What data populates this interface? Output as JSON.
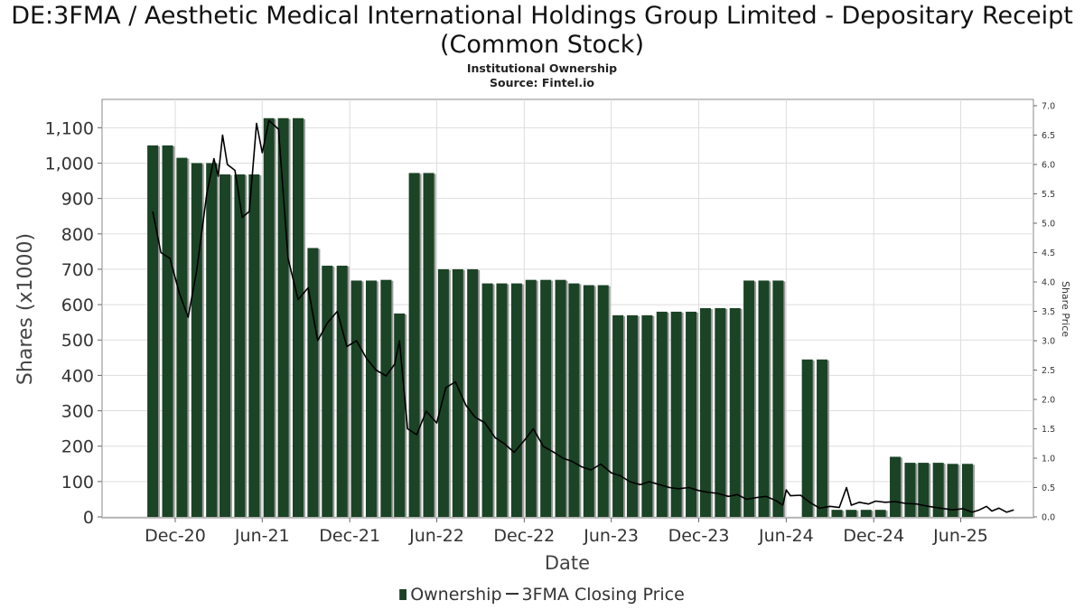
{
  "header": {
    "title": "DE:3FMA / Aesthetic Medical International Holdings Group Limited - Depositary Receipt (Common Stock)",
    "subtitle": "Institutional Ownership",
    "source": "Source: Fintel.io"
  },
  "legend": {
    "ownership_label": "Ownership",
    "price_label": "3FMA Closing Price"
  },
  "colors": {
    "bar_fill": "#1b4325",
    "bar_shadow": "#9a9a9a",
    "price_line": "#000000",
    "grid": "#dddddd"
  },
  "chart_data": {
    "type": "bar",
    "xlabel": "Date",
    "ylabel": "Shares (x1000)",
    "y2label": "Share Price",
    "ylim": [
      0,
      1180
    ],
    "y2lim": [
      0,
      7.0
    ],
    "yticks": [
      0,
      100,
      200,
      300,
      400,
      500,
      600,
      700,
      800,
      900,
      1000,
      1100
    ],
    "y2ticks": [
      0.0,
      0.5,
      1.0,
      1.5,
      2.0,
      2.5,
      3.0,
      3.5,
      4.0,
      4.5,
      5.0,
      5.5,
      6.0,
      6.5,
      7.0
    ],
    "xlim": [
      "2020-07-01",
      "2025-10-31"
    ],
    "xticks": [
      {
        "label": "Dec-20",
        "date": "2020-12-01"
      },
      {
        "label": "Jun-21",
        "date": "2021-06-01"
      },
      {
        "label": "Dec-21",
        "date": "2021-12-01"
      },
      {
        "label": "Jun-22",
        "date": "2022-06-01"
      },
      {
        "label": "Dec-22",
        "date": "2022-12-01"
      },
      {
        "label": "Jun-23",
        "date": "2023-06-01"
      },
      {
        "label": "Dec-23",
        "date": "2023-12-01"
      },
      {
        "label": "Jun-24",
        "date": "2024-06-01"
      },
      {
        "label": "Dec-24",
        "date": "2024-12-01"
      },
      {
        "label": "Jun-25",
        "date": "2025-06-01"
      }
    ],
    "grid": true,
    "legend_position": "bottom",
    "series": [
      {
        "name": "Ownership",
        "type": "bar",
        "points": [
          {
            "date": "2020-10-15",
            "value": 1050
          },
          {
            "date": "2020-11-15",
            "value": 1050
          },
          {
            "date": "2020-12-15",
            "value": 1015
          },
          {
            "date": "2021-01-15",
            "value": 1000
          },
          {
            "date": "2021-02-15",
            "value": 1000
          },
          {
            "date": "2021-03-15",
            "value": 968
          },
          {
            "date": "2021-04-15",
            "value": 968
          },
          {
            "date": "2021-05-15",
            "value": 968
          },
          {
            "date": "2021-06-15",
            "value": 1127
          },
          {
            "date": "2021-07-15",
            "value": 1127
          },
          {
            "date": "2021-08-15",
            "value": 1127
          },
          {
            "date": "2021-09-15",
            "value": 760
          },
          {
            "date": "2021-10-15",
            "value": 710
          },
          {
            "date": "2021-11-15",
            "value": 710
          },
          {
            "date": "2021-12-15",
            "value": 668
          },
          {
            "date": "2022-01-15",
            "value": 668
          },
          {
            "date": "2022-02-15",
            "value": 670
          },
          {
            "date": "2022-03-15",
            "value": 575
          },
          {
            "date": "2022-04-15",
            "value": 972
          },
          {
            "date": "2022-05-15",
            "value": 972
          },
          {
            "date": "2022-06-15",
            "value": 700
          },
          {
            "date": "2022-07-15",
            "value": 700
          },
          {
            "date": "2022-08-15",
            "value": 700
          },
          {
            "date": "2022-09-15",
            "value": 660
          },
          {
            "date": "2022-10-15",
            "value": 660
          },
          {
            "date": "2022-11-15",
            "value": 660
          },
          {
            "date": "2022-12-15",
            "value": 670
          },
          {
            "date": "2023-01-15",
            "value": 670
          },
          {
            "date": "2023-02-15",
            "value": 670
          },
          {
            "date": "2023-03-15",
            "value": 660
          },
          {
            "date": "2023-04-15",
            "value": 655
          },
          {
            "date": "2023-05-15",
            "value": 655
          },
          {
            "date": "2023-06-15",
            "value": 570
          },
          {
            "date": "2023-07-15",
            "value": 570
          },
          {
            "date": "2023-08-15",
            "value": 570
          },
          {
            "date": "2023-09-15",
            "value": 580
          },
          {
            "date": "2023-10-15",
            "value": 580
          },
          {
            "date": "2023-11-15",
            "value": 580
          },
          {
            "date": "2023-12-15",
            "value": 590
          },
          {
            "date": "2024-01-15",
            "value": 590
          },
          {
            "date": "2024-02-15",
            "value": 590
          },
          {
            "date": "2024-03-15",
            "value": 668
          },
          {
            "date": "2024-04-15",
            "value": 668
          },
          {
            "date": "2024-05-15",
            "value": 668
          },
          {
            "date": "2024-07-15",
            "value": 445
          },
          {
            "date": "2024-08-15",
            "value": 445
          },
          {
            "date": "2024-09-15",
            "value": 20
          },
          {
            "date": "2024-10-15",
            "value": 20
          },
          {
            "date": "2024-11-15",
            "value": 20
          },
          {
            "date": "2024-12-15",
            "value": 20
          },
          {
            "date": "2025-01-15",
            "value": 170
          },
          {
            "date": "2025-02-15",
            "value": 153
          },
          {
            "date": "2025-03-15",
            "value": 153
          },
          {
            "date": "2025-04-15",
            "value": 153
          },
          {
            "date": "2025-05-15",
            "value": 150
          },
          {
            "date": "2025-06-15",
            "value": 150
          }
        ]
      },
      {
        "name": "3FMA Closing Price",
        "type": "line",
        "axis": "right",
        "points": [
          {
            "date": "2020-10-15",
            "value": 5.2
          },
          {
            "date": "2020-11-01",
            "value": 4.5
          },
          {
            "date": "2020-11-20",
            "value": 4.4
          },
          {
            "date": "2020-12-10",
            "value": 3.8
          },
          {
            "date": "2020-12-28",
            "value": 3.4
          },
          {
            "date": "2021-01-15",
            "value": 4.2
          },
          {
            "date": "2021-02-05",
            "value": 5.5
          },
          {
            "date": "2021-02-20",
            "value": 6.1
          },
          {
            "date": "2021-03-01",
            "value": 5.8
          },
          {
            "date": "2021-03-10",
            "value": 6.5
          },
          {
            "date": "2021-03-20",
            "value": 6.0
          },
          {
            "date": "2021-04-05",
            "value": 5.9
          },
          {
            "date": "2021-04-20",
            "value": 5.1
          },
          {
            "date": "2021-05-05",
            "value": 5.2
          },
          {
            "date": "2021-05-20",
            "value": 6.7
          },
          {
            "date": "2021-06-01",
            "value": 6.2
          },
          {
            "date": "2021-06-15",
            "value": 6.75
          },
          {
            "date": "2021-07-05",
            "value": 6.6
          },
          {
            "date": "2021-07-25",
            "value": 4.4
          },
          {
            "date": "2021-08-15",
            "value": 3.7
          },
          {
            "date": "2021-09-05",
            "value": 3.9
          },
          {
            "date": "2021-09-25",
            "value": 3.0
          },
          {
            "date": "2021-10-15",
            "value": 3.3
          },
          {
            "date": "2021-11-05",
            "value": 3.5
          },
          {
            "date": "2021-11-25",
            "value": 2.9
          },
          {
            "date": "2021-12-15",
            "value": 3.0
          },
          {
            "date": "2022-01-05",
            "value": 2.7
          },
          {
            "date": "2022-01-25",
            "value": 2.5
          },
          {
            "date": "2022-02-15",
            "value": 2.4
          },
          {
            "date": "2022-03-05",
            "value": 2.6
          },
          {
            "date": "2022-03-15",
            "value": 3.0
          },
          {
            "date": "2022-04-01",
            "value": 1.5
          },
          {
            "date": "2022-04-20",
            "value": 1.4
          },
          {
            "date": "2022-05-10",
            "value": 1.8
          },
          {
            "date": "2022-06-01",
            "value": 1.6
          },
          {
            "date": "2022-06-20",
            "value": 2.2
          },
          {
            "date": "2022-07-10",
            "value": 2.3
          },
          {
            "date": "2022-08-01",
            "value": 1.9
          },
          {
            "date": "2022-08-20",
            "value": 1.7
          },
          {
            "date": "2022-09-10",
            "value": 1.6
          },
          {
            "date": "2022-10-01",
            "value": 1.35
          },
          {
            "date": "2022-10-20",
            "value": 1.25
          },
          {
            "date": "2022-11-10",
            "value": 1.1
          },
          {
            "date": "2022-12-01",
            "value": 1.3
          },
          {
            "date": "2022-12-20",
            "value": 1.5
          },
          {
            "date": "2023-01-10",
            "value": 1.2
          },
          {
            "date": "2023-02-01",
            "value": 1.1
          },
          {
            "date": "2023-02-20",
            "value": 1.0
          },
          {
            "date": "2023-03-10",
            "value": 0.95
          },
          {
            "date": "2023-04-01",
            "value": 0.85
          },
          {
            "date": "2023-04-20",
            "value": 0.8
          },
          {
            "date": "2023-05-10",
            "value": 0.9
          },
          {
            "date": "2023-06-01",
            "value": 0.75
          },
          {
            "date": "2023-06-20",
            "value": 0.7
          },
          {
            "date": "2023-07-10",
            "value": 0.6
          },
          {
            "date": "2023-08-01",
            "value": 0.55
          },
          {
            "date": "2023-08-20",
            "value": 0.6
          },
          {
            "date": "2023-09-10",
            "value": 0.55
          },
          {
            "date": "2023-10-01",
            "value": 0.5
          },
          {
            "date": "2023-10-20",
            "value": 0.48
          },
          {
            "date": "2023-11-10",
            "value": 0.5
          },
          {
            "date": "2023-12-01",
            "value": 0.45
          },
          {
            "date": "2023-12-20",
            "value": 0.42
          },
          {
            "date": "2024-01-10",
            "value": 0.4
          },
          {
            "date": "2024-02-01",
            "value": 0.35
          },
          {
            "date": "2024-02-20",
            "value": 0.38
          },
          {
            "date": "2024-03-10",
            "value": 0.3
          },
          {
            "date": "2024-04-01",
            "value": 0.33
          },
          {
            "date": "2024-04-20",
            "value": 0.35
          },
          {
            "date": "2024-05-10",
            "value": 0.28
          },
          {
            "date": "2024-05-25",
            "value": 0.2
          },
          {
            "date": "2024-06-01",
            "value": 0.46
          },
          {
            "date": "2024-06-10",
            "value": 0.36
          },
          {
            "date": "2024-07-01",
            "value": 0.37
          },
          {
            "date": "2024-07-20",
            "value": 0.25
          },
          {
            "date": "2024-08-10",
            "value": 0.15
          },
          {
            "date": "2024-09-01",
            "value": 0.18
          },
          {
            "date": "2024-09-20",
            "value": 0.16
          },
          {
            "date": "2024-10-05",
            "value": 0.5
          },
          {
            "date": "2024-10-15",
            "value": 0.2
          },
          {
            "date": "2024-11-01",
            "value": 0.25
          },
          {
            "date": "2024-11-20",
            "value": 0.22
          },
          {
            "date": "2024-12-05",
            "value": 0.27
          },
          {
            "date": "2024-12-25",
            "value": 0.25
          },
          {
            "date": "2025-01-15",
            "value": 0.26
          },
          {
            "date": "2025-02-05",
            "value": 0.23
          },
          {
            "date": "2025-03-01",
            "value": 0.22
          },
          {
            "date": "2025-03-25",
            "value": 0.18
          },
          {
            "date": "2025-04-20",
            "value": 0.15
          },
          {
            "date": "2025-05-15",
            "value": 0.12
          },
          {
            "date": "2025-06-05",
            "value": 0.14
          },
          {
            "date": "2025-06-25",
            "value": 0.08
          },
          {
            "date": "2025-07-10",
            "value": 0.12
          },
          {
            "date": "2025-07-25",
            "value": 0.18
          },
          {
            "date": "2025-08-05",
            "value": 0.1
          },
          {
            "date": "2025-08-20",
            "value": 0.15
          },
          {
            "date": "2025-09-05",
            "value": 0.08
          },
          {
            "date": "2025-09-20",
            "value": 0.12
          }
        ]
      }
    ]
  }
}
